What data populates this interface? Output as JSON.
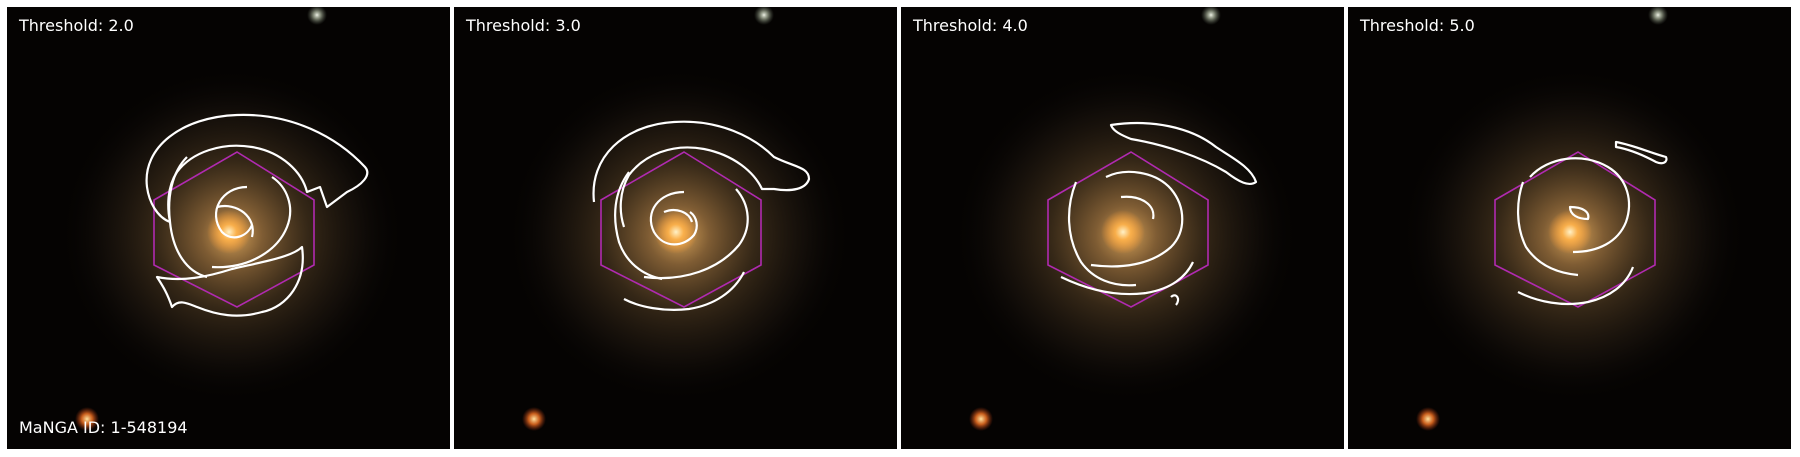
{
  "figure": {
    "panels": [
      {
        "label": "Threshold: 2.0"
      },
      {
        "label": "Threshold: 3.0"
      },
      {
        "label": "Threshold: 4.0"
      },
      {
        "label": "Threshold: 5.0"
      }
    ],
    "id_label": "MaNGA ID: 1-548194"
  },
  "colors": {
    "background": "#050302",
    "contour": "#ffffff",
    "hexagon": "#b02ab0",
    "galaxy_core": "#ffb347"
  }
}
